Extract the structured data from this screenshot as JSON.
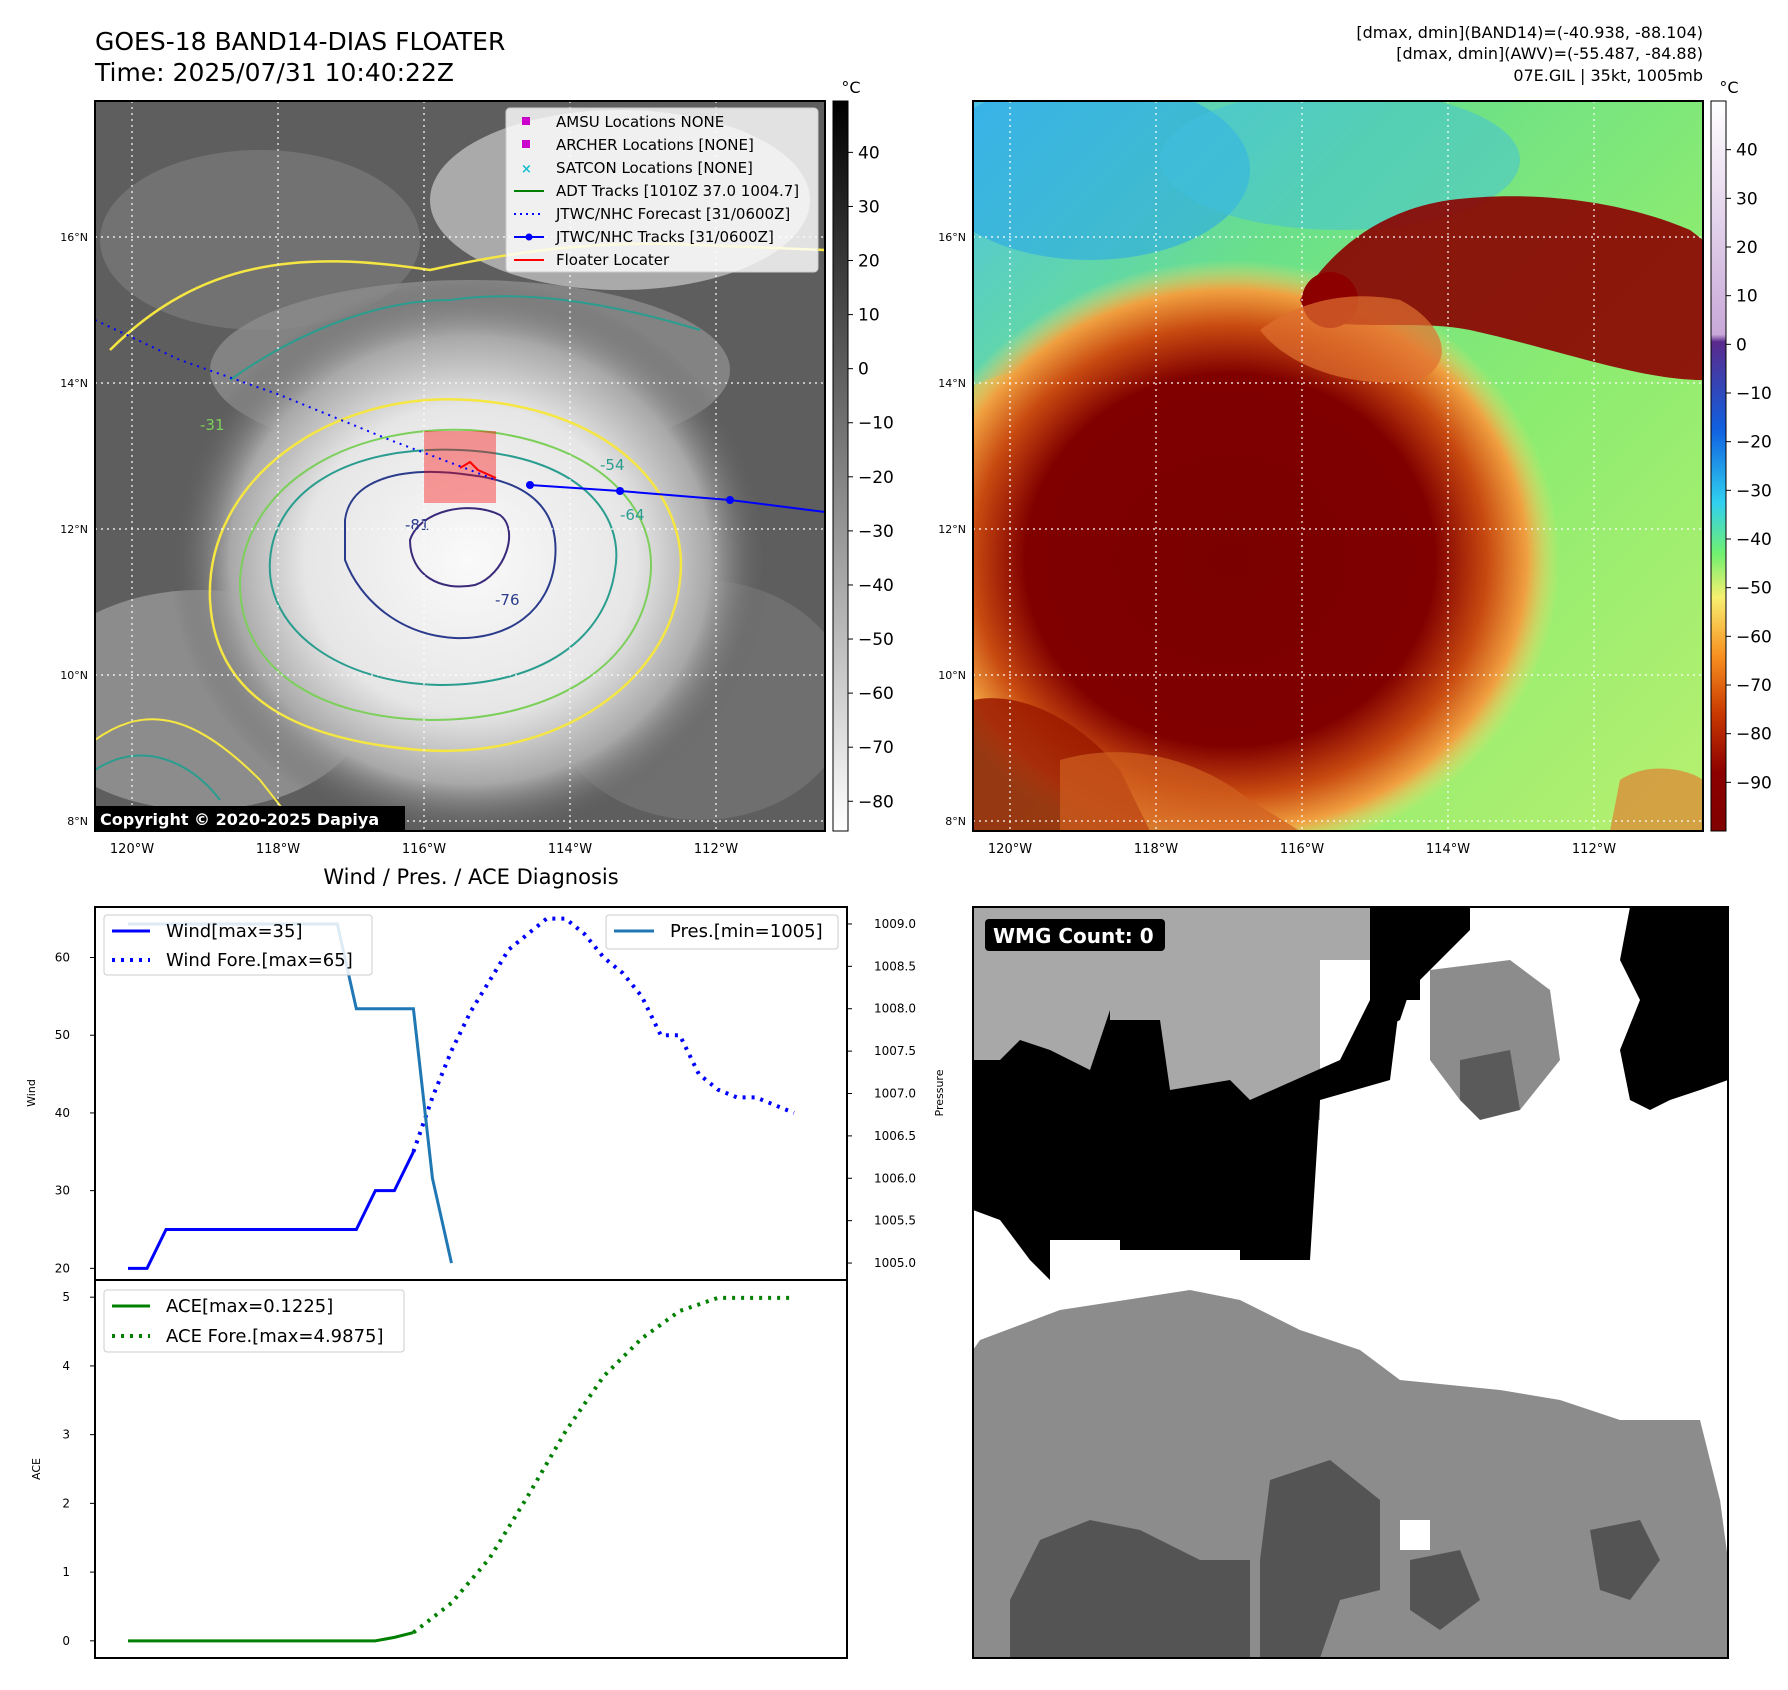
{
  "header": {
    "title": "GOES-18 BAND14-DIAS FLOATER",
    "time": "Time: 2025/07/31 10:40:22Z",
    "info_line1": "[dmax, dmin](BAND14)=(-40.938, -88.104)",
    "info_line2": "[dmax, dmin](AWV)=(-55.487, -84.88)",
    "info_line3": "07E.GIL | 35kt, 1005mb",
    "section_title": "Wind / Pres. / ACE Diagnosis",
    "copyright": "Copyright © 2020-2025 Dapiya",
    "wmg_count": "WMG Count: 0"
  },
  "map": {
    "lat_labels": [
      "16°N",
      "14°N",
      "12°N",
      "10°N",
      "8°N"
    ],
    "lon_labels": [
      "120°W",
      "118°W",
      "116°W",
      "114°W",
      "112°W"
    ],
    "legend": [
      {
        "label": "AMSU Locations NONE",
        "color": "#cc00cc",
        "kind": "square"
      },
      {
        "label": "ARCHER Locations [NONE]",
        "color": "#cc00cc",
        "kind": "square"
      },
      {
        "label": "SATCON Locations [NONE]",
        "color": "#17becf",
        "kind": "x"
      },
      {
        "label": "ADT Tracks [1010Z 37.0 1004.7]",
        "color": "#008000",
        "kind": "line"
      },
      {
        "label": "JTWC/NHC Forecast [31/0600Z]",
        "color": "#0000ff",
        "kind": "dotted"
      },
      {
        "label": "JTWC/NHC Tracks [31/0600Z]",
        "color": "#0000ff",
        "kind": "line-dot"
      },
      {
        "label": "Floater Locater",
        "color": "#ff0000",
        "kind": "line"
      }
    ],
    "contour_labels": [
      "-81",
      "-76",
      "-64",
      "-54",
      "-31"
    ]
  },
  "colorbar_left": {
    "unit": "°C",
    "ticks": [
      "40",
      "30",
      "20",
      "10",
      "0",
      "−10",
      "−20",
      "−30",
      "−40",
      "−50",
      "−60",
      "−70",
      "−80"
    ]
  },
  "colorbar_right": {
    "unit": "°C",
    "ticks": [
      "40",
      "30",
      "20",
      "10",
      "0",
      "−10",
      "−20",
      "−30",
      "−40",
      "−50",
      "−60",
      "−70",
      "−80",
      "−90"
    ]
  },
  "chart_data": [
    {
      "type": "line",
      "ylabel": "Wind",
      "y2label": "Pressure",
      "ylim": [
        18.5,
        66.5
      ],
      "y2lim": [
        1004.8,
        1009.2
      ],
      "y_ticks": [
        "60",
        "50",
        "40",
        "30",
        "20"
      ],
      "y2_ticks": [
        "1009.0",
        "1008.5",
        "1008.0",
        "1007.5",
        "1007.0",
        "1006.5",
        "1006.0",
        "1005.5",
        "1005.0"
      ],
      "x_range": [
        0,
        36
      ],
      "legend_left": [
        "Wind[max=35]",
        "Wind Fore.[max=65]"
      ],
      "legend_right": [
        "Pres.[min=1005]"
      ],
      "series": [
        {
          "name": "Wind[max=35]",
          "color": "#0000ff",
          "style": "solid",
          "x": [
            0,
            1,
            2,
            12,
            13,
            14,
            15
          ],
          "y": [
            20,
            20,
            25,
            25,
            30,
            30,
            35
          ]
        },
        {
          "name": "Wind Fore.[max=65]",
          "color": "#0000ff",
          "style": "dotted",
          "x": [
            15,
            16,
            17,
            18,
            19,
            20,
            21,
            22,
            23,
            24,
            25,
            26,
            27,
            28,
            29,
            30,
            31,
            32,
            33,
            34,
            35
          ],
          "y": [
            35,
            42,
            48,
            53,
            57,
            61,
            63,
            65,
            65,
            63,
            60,
            58,
            55,
            50,
            50,
            45,
            43,
            42,
            42,
            41,
            40
          ]
        },
        {
          "name": "Pres.[min=1005]",
          "color": "#1f77b4",
          "style": "solid",
          "axis": "right",
          "x": [
            0,
            11,
            12,
            15,
            16,
            17
          ],
          "y": [
            1009.0,
            1009.0,
            1008.0,
            1008.0,
            1006.0,
            1005.0
          ]
        }
      ]
    },
    {
      "type": "line",
      "ylabel": "ACE",
      "ylim": [
        -0.25,
        5.25
      ],
      "y_ticks": [
        "5",
        "4",
        "3",
        "2",
        "1",
        "0"
      ],
      "x_range": [
        0,
        36
      ],
      "legend": [
        "ACE[max=0.1225]",
        "ACE Fore.[max=4.9875]"
      ],
      "series": [
        {
          "name": "ACE[max=0.1225]",
          "color": "#008000",
          "style": "solid",
          "x": [
            0,
            13,
            14,
            15
          ],
          "y": [
            0,
            0,
            0.05,
            0.12
          ]
        },
        {
          "name": "ACE Fore.[max=4.9875]",
          "color": "#008000",
          "style": "dotted",
          "x": [
            15,
            17,
            19,
            21,
            23,
            25,
            27,
            29,
            31,
            33,
            35
          ],
          "y": [
            0.12,
            0.55,
            1.2,
            2.1,
            3.05,
            3.85,
            4.4,
            4.8,
            4.99,
            4.99,
            4.99
          ]
        }
      ]
    }
  ]
}
